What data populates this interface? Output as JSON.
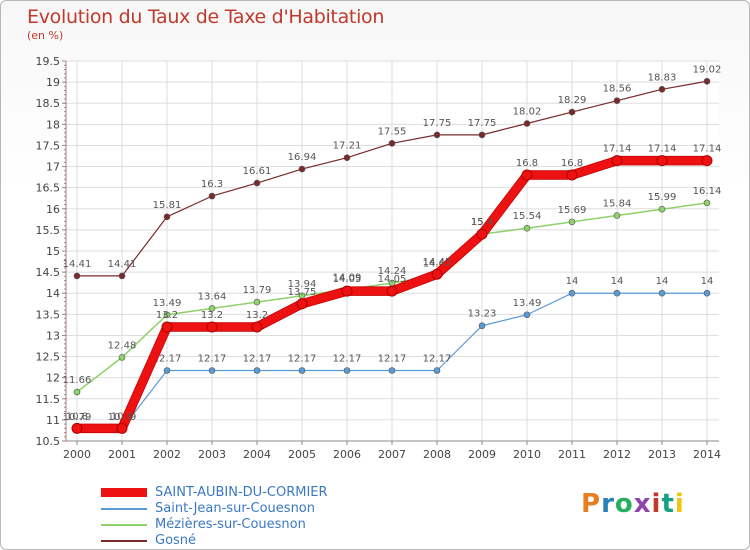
{
  "header": {
    "title": "Evolution du Taux de Taxe d'Habitation",
    "subtitle": "(en %)"
  },
  "logo": {
    "text": "Proxiti",
    "colors": [
      "#e67e22",
      "#2980b9",
      "#27ae60",
      "#8e44ad",
      "#c0392b",
      "#16a085",
      "#f1c40f"
    ]
  },
  "chart_data": {
    "type": "line",
    "title": "Evolution du Taux de Taxe d'Habitation",
    "ylabel": "(en %)",
    "xlabel": "",
    "ylim": [
      10.5,
      19.5
    ],
    "ytick_step": 0.5,
    "x": [
      2000,
      2001,
      2002,
      2003,
      2004,
      2005,
      2006,
      2007,
      2008,
      2009,
      2010,
      2011,
      2012,
      2013,
      2014
    ],
    "grid": true,
    "legend_position": "bottom-left",
    "series": [
      {
        "name": "Gosné",
        "color": "#7a2a2a",
        "width": 1.2,
        "values": [
          14.41,
          14.41,
          15.81,
          16.3,
          16.61,
          16.94,
          17.21,
          17.55,
          17.75,
          17.75,
          18.02,
          18.29,
          18.56,
          18.83,
          19.02
        ],
        "labels": [
          "14.41",
          "14.41",
          "15.81",
          "16.3",
          "16.61",
          "16.94",
          "17.21",
          "17.55",
          "17.75",
          "17.75",
          "18.02",
          "18.29",
          "18.56",
          "18.83",
          "19.02"
        ]
      },
      {
        "name": "Mézières-sur-Couesnon",
        "color": "#8fd16a",
        "width": 1.5,
        "values": [
          11.66,
          12.48,
          13.49,
          13.64,
          13.79,
          13.94,
          14.09,
          14.24,
          14.42,
          15.4,
          15.54,
          15.69,
          15.84,
          15.99,
          16.14
        ],
        "labels": [
          "11.66",
          "12.48",
          "13.49",
          "13.64",
          "13.79",
          "13.94",
          "14.09",
          "14.24",
          "14.42",
          "15.4",
          "15.54",
          "15.69",
          "15.84",
          "15.99",
          "16.14"
        ]
      },
      {
        "name": "Saint-Jean-sur-Couesnon",
        "color": "#5b9bd5",
        "width": 1.2,
        "values": [
          10.79,
          10.79,
          12.17,
          12.17,
          12.17,
          12.17,
          12.17,
          12.17,
          12.17,
          13.23,
          13.49,
          14,
          14,
          14,
          14
        ],
        "labels": [
          "10.79",
          "10.79",
          "12.17",
          "12.17",
          "12.17",
          "12.17",
          "12.17",
          "12.17",
          "12.17",
          "13.23",
          "13.49",
          "14",
          "14",
          "14",
          "14"
        ]
      },
      {
        "name": "SAINT-AUBIN-DU-CORMIER",
        "color": "#ee1111",
        "width": 8,
        "values": [
          10.8,
          10.8,
          13.2,
          13.2,
          13.2,
          13.75,
          14.05,
          14.05,
          14.45,
          15.4,
          16.8,
          16.8,
          17.14,
          17.14,
          17.14
        ],
        "labels": [
          "10.8",
          "10.8",
          "13.2",
          "13.2",
          "13.2",
          "13.75",
          "14.05",
          "14.05",
          "14.45",
          "15.4",
          "16.8",
          "16.8",
          "17.14",
          "17.14",
          "17.14"
        ]
      }
    ]
  },
  "legend": {
    "items": [
      {
        "label": "SAINT-AUBIN-DU-CORMIER",
        "color": "#ee1111",
        "thickness": 9
      },
      {
        "label": "Saint-Jean-sur-Couesnon",
        "color": "#5b9bd5",
        "thickness": 2
      },
      {
        "label": "Mézières-sur-Couesnon",
        "color": "#8fd16a",
        "thickness": 2
      },
      {
        "label": "Gosné",
        "color": "#7a2a2a",
        "thickness": 2
      }
    ]
  }
}
